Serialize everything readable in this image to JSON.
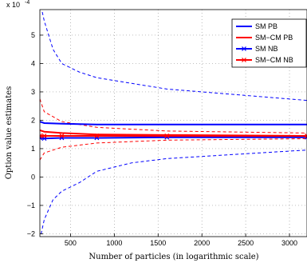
{
  "chart_data": {
    "type": "line",
    "xlabel": "Number of particles (in logarithmic scale)",
    "ylabel": "Option value estimates",
    "y_multiplier": "x 10",
    "y_exponent": "-4",
    "xlim": [
      150,
      3200
    ],
    "ylim": [
      -2.1,
      5.9
    ],
    "xticks": [
      500,
      1000,
      1500,
      2000,
      2500,
      3000
    ],
    "xtick_labels": [
      "500",
      "1000",
      "1500",
      "2000",
      "2500",
      "3000"
    ],
    "yticks": [
      -2,
      -1,
      0,
      1,
      2,
      3,
      4,
      5
    ],
    "ytick_labels": [
      "−2",
      "−1",
      "0",
      "1",
      "2",
      "3",
      "4",
      "5"
    ],
    "grid": true,
    "legend_position": "top-right",
    "series": [
      {
        "name": "SM PB",
        "color": "#0000ff",
        "style": "solid",
        "marker": "none",
        "x": [
          150,
          200,
          400,
          800,
          1600,
          3200
        ],
        "y": [
          1.95,
          1.9,
          1.88,
          1.85,
          1.85,
          1.85
        ]
      },
      {
        "name": "SM−CM PB",
        "color": "#ff0000",
        "style": "solid",
        "marker": "none",
        "x": [
          150,
          200,
          400,
          800,
          1600,
          3200
        ],
        "y": [
          1.65,
          1.6,
          1.55,
          1.5,
          1.48,
          1.45
        ]
      },
      {
        "name": "SM NB",
        "color": "#0000ff",
        "style": "solid",
        "marker": "x",
        "x": [
          150,
          200,
          400,
          800,
          1600,
          3200
        ],
        "y": [
          1.38,
          1.36,
          1.38,
          1.38,
          1.4,
          1.4
        ]
      },
      {
        "name": "SM−CM NB",
        "color": "#ff0000",
        "style": "solid",
        "marker": "x",
        "x": [
          150,
          200,
          400,
          800,
          1600,
          3200
        ],
        "y": [
          1.45,
          1.45,
          1.45,
          1.45,
          1.45,
          1.45
        ]
      }
    ],
    "bounds": [
      {
        "color": "#0000ff",
        "style": "dashed",
        "x": [
          150,
          200,
          300,
          400,
          600,
          800,
          1200,
          1600,
          2400,
          3200
        ],
        "y": [
          6.2,
          5.5,
          4.5,
          4.0,
          3.7,
          3.5,
          3.3,
          3.1,
          2.9,
          2.7
        ]
      },
      {
        "color": "#0000ff",
        "style": "dashed",
        "x": [
          150,
          200,
          300,
          400,
          600,
          800,
          1200,
          1600,
          2400,
          3200
        ],
        "y": [
          -2.2,
          -1.5,
          -0.8,
          -0.5,
          -0.2,
          0.2,
          0.5,
          0.65,
          0.8,
          0.95
        ]
      },
      {
        "color": "#ff0000",
        "style": "dashed",
        "x": [
          150,
          200,
          400,
          800,
          1600,
          3200
        ],
        "y": [
          2.75,
          2.3,
          1.95,
          1.75,
          1.62,
          1.55
        ]
      },
      {
        "color": "#ff0000",
        "style": "dashed",
        "x": [
          150,
          200,
          400,
          800,
          1600,
          3200
        ],
        "y": [
          0.6,
          0.85,
          1.05,
          1.2,
          1.3,
          1.35
        ]
      }
    ]
  }
}
